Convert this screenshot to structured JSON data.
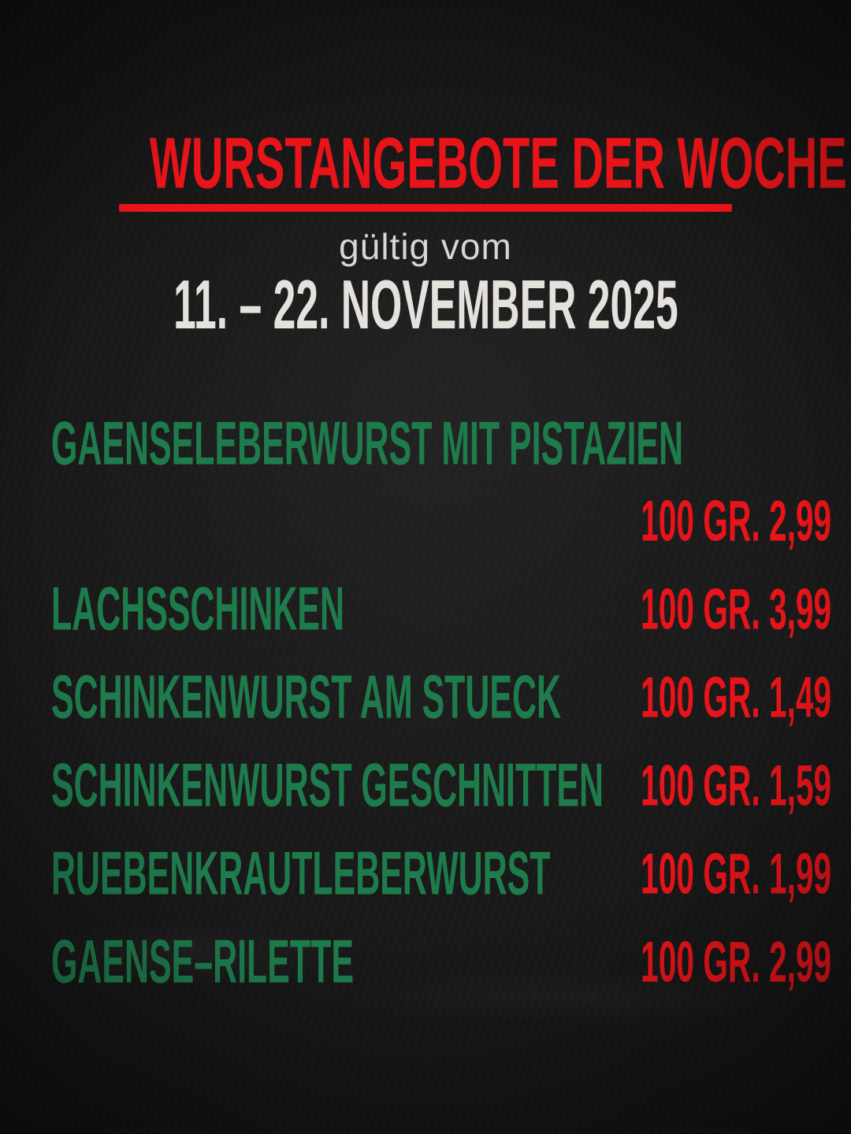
{
  "poster": {
    "title": "WURSTANGEBOTE DER WOCHE",
    "subtitle": "gültig vom",
    "date_range": "11. – 22. NOVEMBER 2025",
    "colors": {
      "accent_red": "#e81419",
      "product_green": "#1e7c4c",
      "date_white": "#e5e2dd",
      "subtitle_gray": "#d8d6d2",
      "background_dark": "#141414"
    },
    "offers": [
      {
        "name": "GAENSELEBERWURST MIT PISTAZIEN",
        "price": "100 GR. 2,99",
        "price_on_own_line": true
      },
      {
        "name": "LACHSSCHINKEN",
        "price": "100 GR. 3,99",
        "price_on_own_line": false
      },
      {
        "name": "SCHINKENWURST AM STUECK",
        "price": "100 GR. 1,49",
        "price_on_own_line": false
      },
      {
        "name": "SCHINKENWURST GESCHNITTEN",
        "price": "100 GR. 1,59",
        "price_on_own_line": false
      },
      {
        "name": "RUEBENKRAUTLEBERWURST",
        "price": "100 GR. 1,99",
        "price_on_own_line": false
      },
      {
        "name": "GAENSE–RILETTE",
        "price": "100 GR. 2,99",
        "price_on_own_line": false
      }
    ]
  }
}
